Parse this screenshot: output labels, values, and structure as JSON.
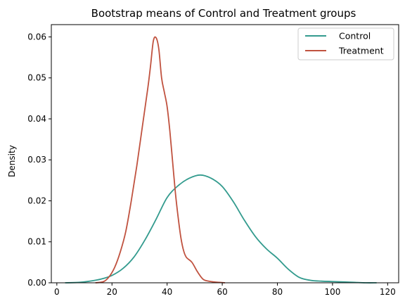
{
  "chart_data": {
    "type": "line",
    "title": "Bootstrap means of Control and Treatment groups",
    "xlabel": "",
    "ylabel": "Density",
    "xlim": [
      -2,
      124
    ],
    "ylim": [
      0,
      0.063
    ],
    "xticks": [
      0,
      20,
      40,
      60,
      80,
      100,
      120
    ],
    "yticks": [
      0.0,
      0.01,
      0.02,
      0.03,
      0.04,
      0.05,
      0.06
    ],
    "xtick_labels": [
      "0",
      "20",
      "40",
      "60",
      "80",
      "100",
      "120"
    ],
    "ytick_labels": [
      "0.00",
      "0.01",
      "0.02",
      "0.03",
      "0.04",
      "0.05",
      "0.06"
    ],
    "grid": false,
    "legend_position": "top-right",
    "series": [
      {
        "name": "Control",
        "color": "#339b8e",
        "x": [
          3,
          8,
          12,
          16,
          20,
          24,
          28,
          32,
          36,
          40,
          44,
          48,
          52,
          56,
          60,
          64,
          68,
          72,
          76,
          80,
          84,
          88,
          92,
          96,
          100,
          104,
          108,
          112,
          116
        ],
        "y": [
          0.0,
          0.0001,
          0.0004,
          0.0009,
          0.0018,
          0.0035,
          0.0063,
          0.0105,
          0.0155,
          0.0208,
          0.0237,
          0.0255,
          0.0263,
          0.0255,
          0.0235,
          0.0198,
          0.0153,
          0.0113,
          0.0083,
          0.006,
          0.0033,
          0.0013,
          0.0006,
          0.0004,
          0.0003,
          0.0002,
          0.0001,
          0.0,
          0.0
        ]
      },
      {
        "name": "Treatment",
        "color": "#c0523f",
        "x": [
          14,
          17,
          19,
          21,
          23,
          25,
          27,
          29,
          31,
          33,
          34,
          35,
          36,
          37,
          38,
          39,
          40,
          41,
          42,
          43,
          44,
          45,
          46,
          47,
          49,
          51,
          53,
          55,
          57,
          59,
          61
        ],
        "y": [
          0.0,
          0.0003,
          0.0015,
          0.0038,
          0.0075,
          0.0125,
          0.02,
          0.0285,
          0.038,
          0.0475,
          0.053,
          0.059,
          0.0598,
          0.057,
          0.05,
          0.0465,
          0.043,
          0.037,
          0.0295,
          0.022,
          0.016,
          0.011,
          0.0078,
          0.0062,
          0.005,
          0.0027,
          0.0009,
          0.0004,
          0.0002,
          0.0001,
          0.0
        ]
      }
    ]
  }
}
